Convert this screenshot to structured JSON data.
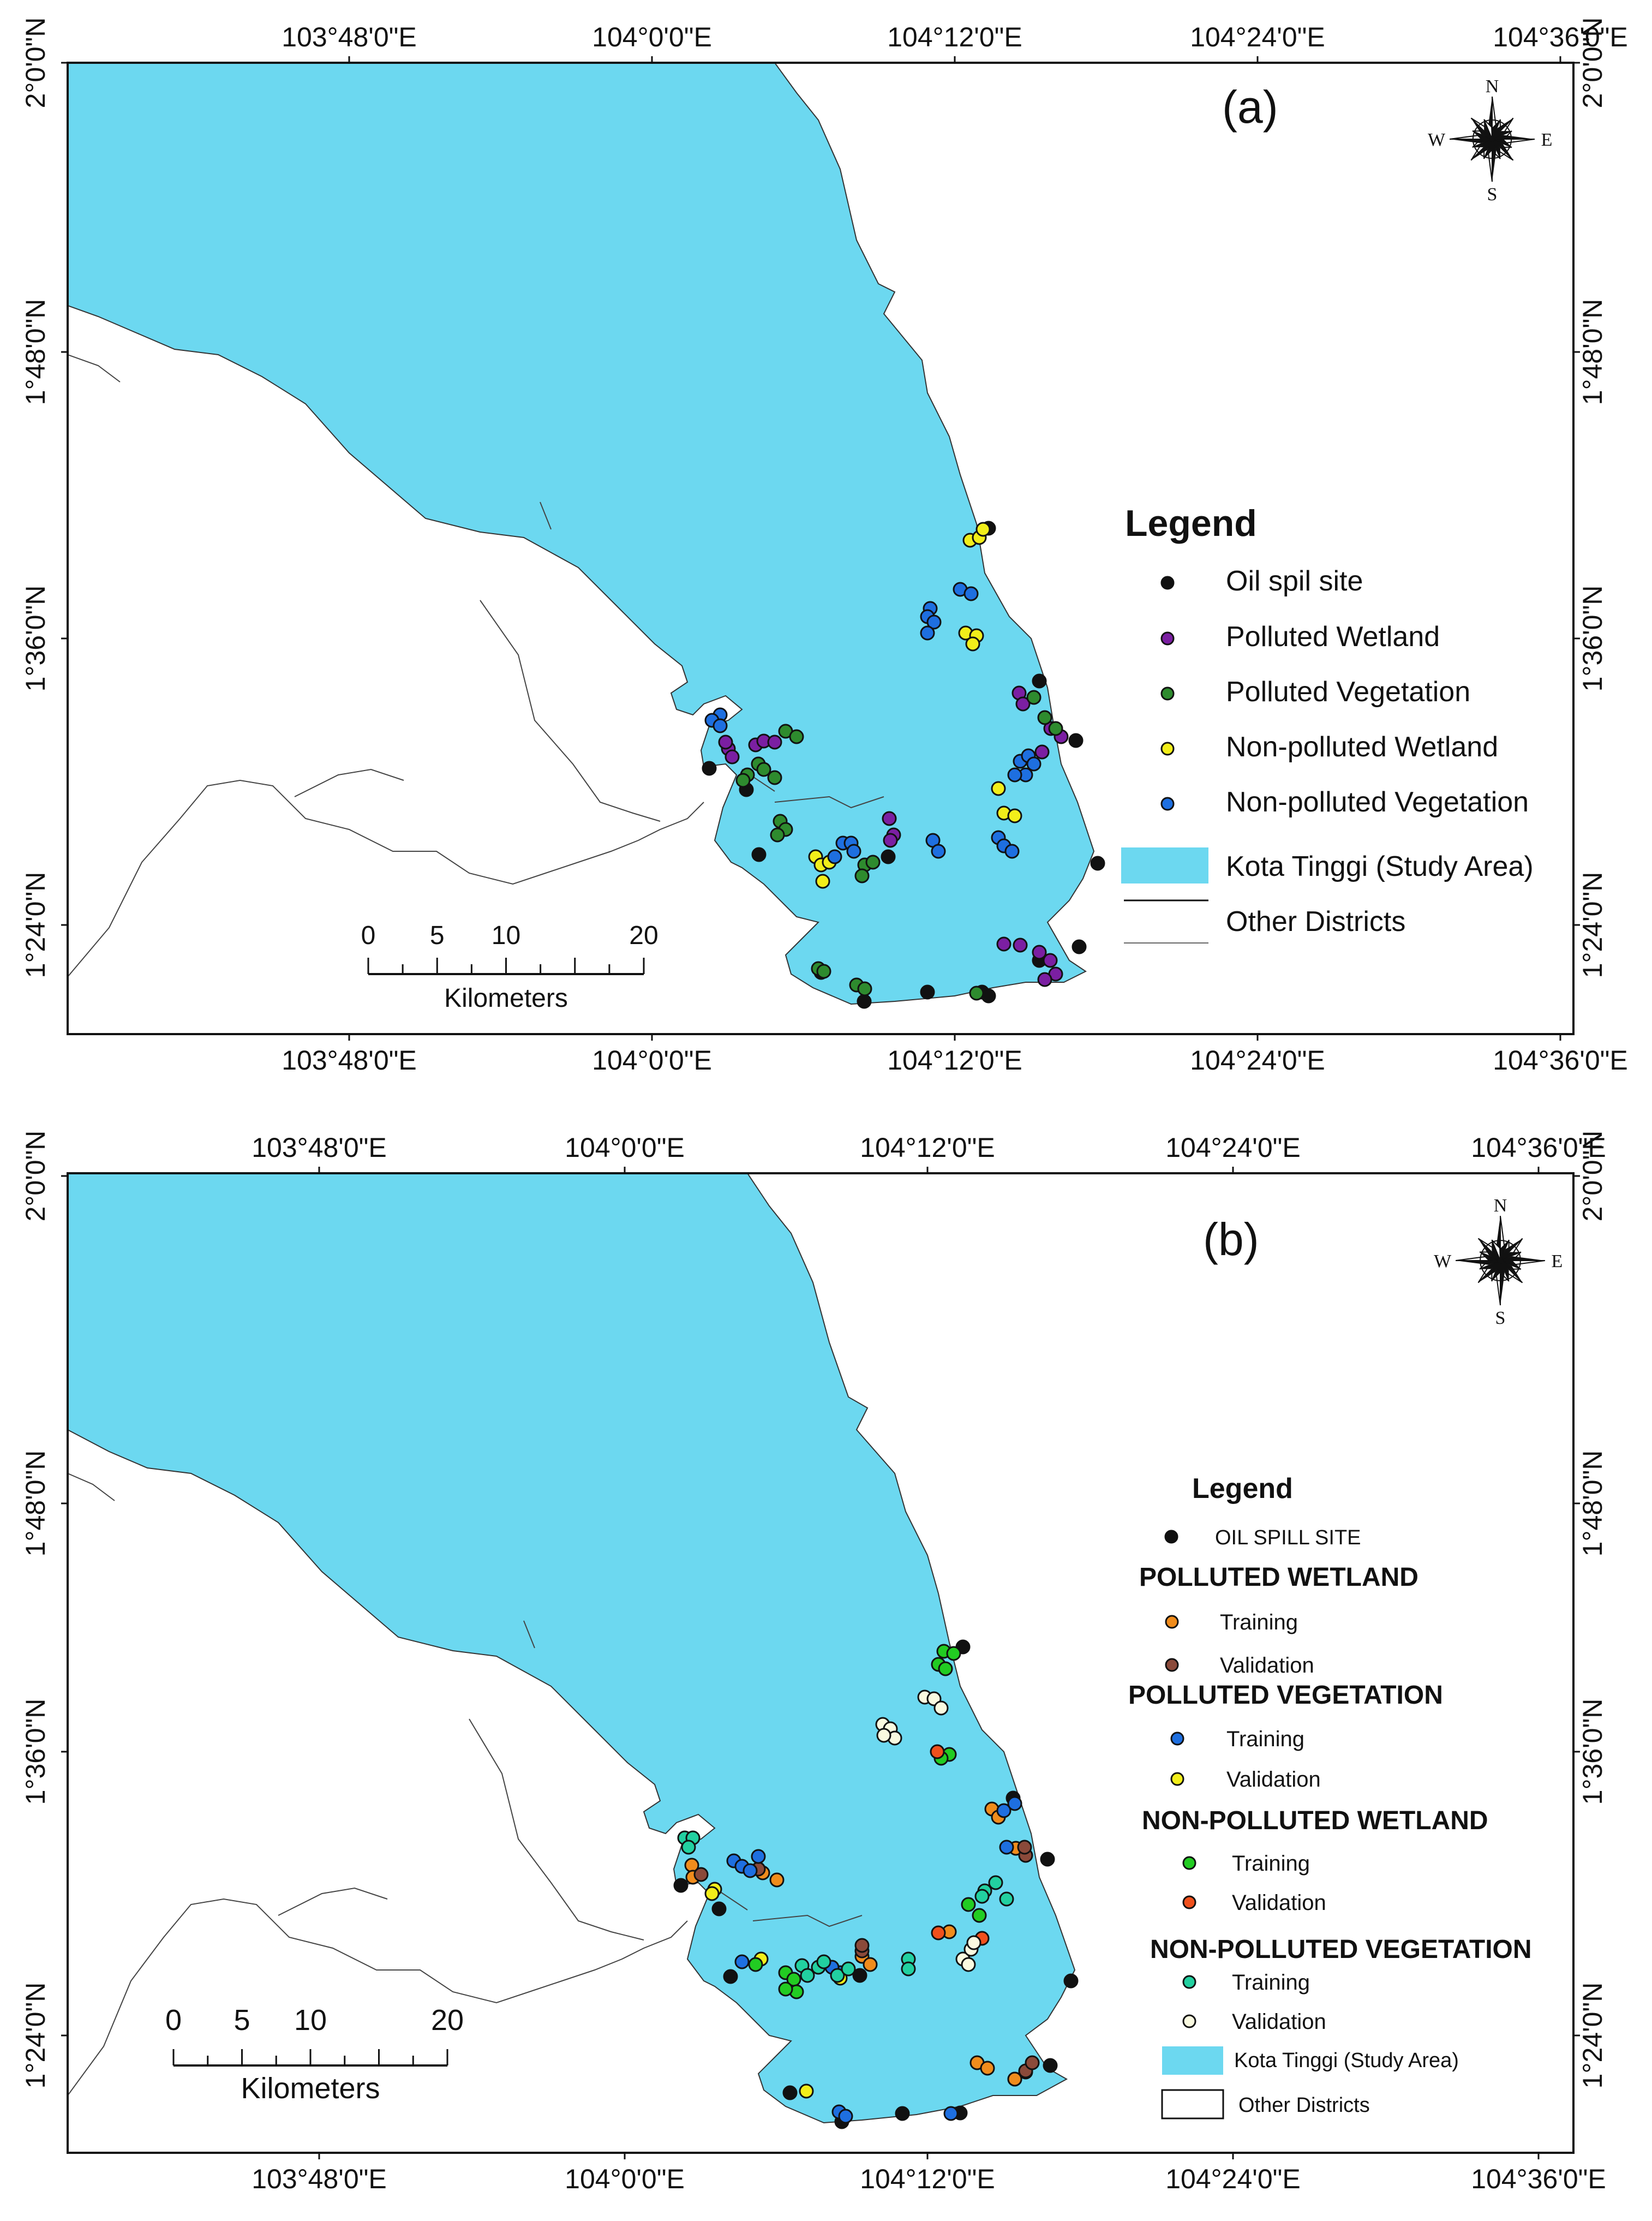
{
  "colors": {
    "study_area": "#6cd8f0",
    "oil_spill": "#111111",
    "polluted_wetland": "#7b1fa2",
    "polluted_vegetation": "#2e8b2e",
    "nonpolluted_wetland": "#f2ee1a",
    "nonpolluted_vegetation": "#1e6fe0",
    "pw_training": "#f08c1c",
    "pw_validation": "#8b4a3a",
    "pv_training": "#1e6fe0",
    "pv_validation": "#f2ee1a",
    "nw_training": "#22cc22",
    "nw_validation": "#f0501c",
    "nv_training": "#22d0a0",
    "nv_validation": "#fafae0"
  },
  "axes": {
    "lon_labels": [
      "103°48'0\"E",
      "104°0'0\"E",
      "104°12'0\"E",
      "104°24'0\"E",
      "104°36'0\"E"
    ],
    "lat_labels": [
      "2°0'0\"N",
      "1°48'0\"N",
      "1°36'0\"N",
      "1°24'0\"N"
    ]
  },
  "compass": {
    "n": "N",
    "s": "S",
    "e": "E",
    "w": "W"
  },
  "panel_a": {
    "label": "(a)",
    "legend": {
      "title": "Legend",
      "items": [
        "Oil spil site",
        "Polluted Wetland",
        "Polluted Vegetation",
        "Non-polluted Wetland",
        "Non-polluted Vegetation",
        "Kota Tinggi (Study Area)",
        "Other Districts"
      ]
    },
    "scale": {
      "ticks": [
        "0",
        "5",
        "10",
        "20"
      ],
      "unit": "Kilometers"
    }
  },
  "panel_b": {
    "label": "(b)",
    "legend": {
      "title": "Legend",
      "oil": "OIL SPILL SITE",
      "groups": [
        {
          "title": "POLLUTED WETLAND",
          "training": "Training",
          "validation": "Validation"
        },
        {
          "title": "POLLUTED VEGETATION",
          "training": "Training",
          "validation": "Validation"
        },
        {
          "title": "NON-POLLUTED WETLAND",
          "training": "Training",
          "validation": "Validation"
        },
        {
          "title": "NON-POLLUTED VEGETATION",
          "training": "Training",
          "validation": "Validation"
        }
      ],
      "area": "Kota Tinggi (Study Area)",
      "other": "Other Districts"
    },
    "scale": {
      "ticks": [
        "0",
        "5",
        "10",
        "20"
      ],
      "unit": "Kilometers"
    }
  }
}
